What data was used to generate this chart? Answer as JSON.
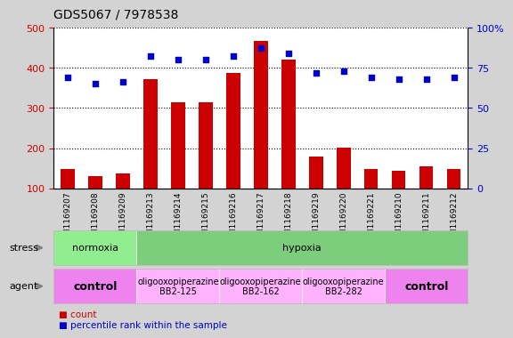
{
  "title": "GDS5067 / 7978538",
  "samples": [
    "GSM1169207",
    "GSM1169208",
    "GSM1169209",
    "GSM1169213",
    "GSM1169214",
    "GSM1169215",
    "GSM1169216",
    "GSM1169217",
    "GSM1169218",
    "GSM1169219",
    "GSM1169220",
    "GSM1169221",
    "GSM1169210",
    "GSM1169211",
    "GSM1169212"
  ],
  "counts": [
    148,
    130,
    136,
    372,
    315,
    315,
    388,
    467,
    420,
    178,
    201,
    148,
    144,
    155,
    149
  ],
  "percentiles": [
    69,
    65,
    66,
    82,
    80,
    80,
    82,
    87,
    84,
    72,
    73,
    69,
    68,
    68,
    69
  ],
  "bar_color": "#cc0000",
  "dot_color": "#0000cc",
  "ymin": 100,
  "ymax": 500,
  "yticks": [
    100,
    200,
    300,
    400,
    500
  ],
  "yticks_labels": [
    "100",
    "200",
    "300",
    "400",
    "500"
  ],
  "y2ticks": [
    0,
    25,
    50,
    75,
    100
  ],
  "y2ticks_labels": [
    "0",
    "25",
    "50",
    "75",
    "100%"
  ],
  "ylabel_color": "#cc0000",
  "y2label_color": "#0000cc",
  "stress_row": [
    {
      "label": "normoxia",
      "start": 0,
      "end": 3,
      "color": "#90ee90"
    },
    {
      "label": "hypoxia",
      "start": 3,
      "end": 15,
      "color": "#7ccd7c"
    }
  ],
  "agent_row": [
    {
      "label": "control",
      "start": 0,
      "end": 3,
      "color": "#ee82ee",
      "bold": true,
      "fontsize": 9
    },
    {
      "label": "oligooxopiperazine\nBB2-125",
      "start": 3,
      "end": 6,
      "color": "#ffb3ff",
      "bold": false,
      "fontsize": 7
    },
    {
      "label": "oligooxopiperazine\nBB2-162",
      "start": 6,
      "end": 9,
      "color": "#ffb3ff",
      "bold": false,
      "fontsize": 7
    },
    {
      "label": "oligooxopiperazine\nBB2-282",
      "start": 9,
      "end": 12,
      "color": "#ffb3ff",
      "bold": false,
      "fontsize": 7
    },
    {
      "label": "control",
      "start": 12,
      "end": 15,
      "color": "#ee82ee",
      "bold": true,
      "fontsize": 9
    }
  ],
  "stress_label": "stress",
  "agent_label": "agent",
  "legend_count_label": "count",
  "legend_pct_label": "percentile rank within the sample",
  "background_color": "#e8e8e8",
  "plot_bg_color": "#ffffff"
}
